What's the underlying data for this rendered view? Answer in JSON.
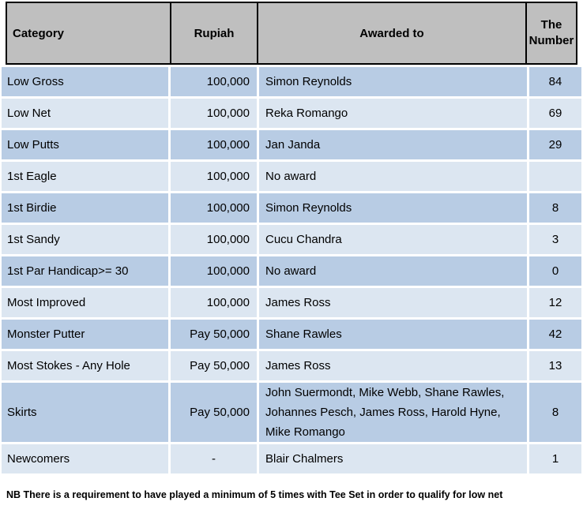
{
  "table": {
    "columns": [
      {
        "label": "Category"
      },
      {
        "label": "Rupiah"
      },
      {
        "label": "Awarded to"
      },
      {
        "label": "The Number"
      }
    ],
    "rows": [
      {
        "category": "Low Gross",
        "rupiah": "100,000",
        "awarded_to": "Simon Reynolds",
        "number": "84"
      },
      {
        "category": "Low Net",
        "rupiah": "100,000",
        "awarded_to": "Reka Romango",
        "number": "69"
      },
      {
        "category": "Low Putts",
        "rupiah": "100,000",
        "awarded_to": "Jan Janda",
        "number": "29"
      },
      {
        "category": "1st Eagle",
        "rupiah": "100,000",
        "awarded_to": "No award",
        "number": ""
      },
      {
        "category": "1st Birdie",
        "rupiah": "100,000",
        "awarded_to": "Simon Reynolds",
        "number": "8"
      },
      {
        "category": "1st Sandy",
        "rupiah": "100,000",
        "awarded_to": "Cucu Chandra",
        "number": "3"
      },
      {
        "category": "1st Par Handicap>= 30",
        "rupiah": "100,000",
        "awarded_to": "No award",
        "number": "0"
      },
      {
        "category": "Most Improved",
        "rupiah": "100,000",
        "awarded_to": "James Ross",
        "number": "12"
      },
      {
        "category": "Monster Putter",
        "rupiah": "Pay 50,000",
        "awarded_to": "Shane Rawles",
        "number": "42"
      },
      {
        "category": "Most Stokes - Any Hole",
        "rupiah": "Pay 50,000",
        "awarded_to": "James Ross",
        "number": "13"
      },
      {
        "category": "Skirts",
        "rupiah": "Pay 50,000",
        "awarded_to": "John Suermondt, Mike Webb, Shane Rawles, Johannes Pesch, James Ross, Harold Hyne, Mike Romango",
        "number": "8",
        "tall": true
      },
      {
        "category": "Newcomers",
        "rupiah": "-",
        "awarded_to": "Blair Chalmers",
        "number": "1"
      }
    ]
  },
  "footnote": "NB There is a requirement to have played a minimum of 5 times with Tee Set in order to qualify for low net",
  "colors": {
    "header_bg": "#bfbfbf",
    "row_dark": "#b8cce4",
    "row_light": "#dce6f1",
    "border": "#000000",
    "text": "#000000"
  }
}
